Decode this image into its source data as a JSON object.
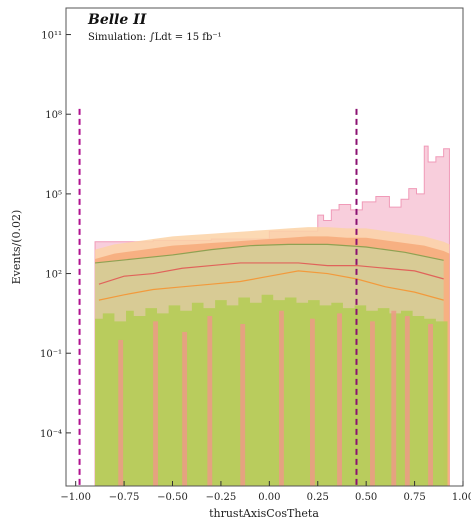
{
  "chart_data": {
    "type": "area",
    "experiment_label": "Belle II",
    "simulation_label": "Simulation: ∫Ldt = 15 fb⁻¹",
    "xlabel": "thrustAxisCosTheta",
    "ylabel": "Events/(0.02)",
    "xlim": [
      -1.05,
      1.0
    ],
    "ylim_log10": [
      -6,
      12
    ],
    "log_y": true,
    "grid": false,
    "x_ticks": [
      {
        "value": -1.0,
        "label": "−1.00"
      },
      {
        "value": -0.75,
        "label": "−0.75"
      },
      {
        "value": -0.5,
        "label": "−0.50"
      },
      {
        "value": -0.25,
        "label": "−0.25"
      },
      {
        "value": 0.0,
        "label": "0.00"
      },
      {
        "value": 0.25,
        "label": "0.25"
      },
      {
        "value": 0.5,
        "label": "0.50"
      },
      {
        "value": 0.75,
        "label": "0.75"
      },
      {
        "value": 1.0,
        "label": "1.00"
      }
    ],
    "y_ticks": [
      {
        "exp": 11,
        "label": "10¹¹"
      },
      {
        "exp": 8,
        "label": "10⁸"
      },
      {
        "exp": 5,
        "label": "10⁵"
      },
      {
        "exp": 2,
        "label": "10²"
      },
      {
        "exp": -1,
        "label": "10⁻¹"
      },
      {
        "exp": -4,
        "label": "10⁻⁴"
      }
    ],
    "cut_lines": [
      {
        "x": -0.98,
        "color": "#b0108f"
      },
      {
        "x": 0.45,
        "color": "#8a1070"
      }
    ],
    "colors": {
      "pink": "#f7c5d6",
      "pink_line": "#f09ab8",
      "orange_light": "#fbd2a6",
      "orange": "#f6a877",
      "olive": "#cfd29a",
      "green": "#b6cc57",
      "salmon": "#ec9a86",
      "red_line": "#e0635a",
      "orange_line": "#f29a3c",
      "olive_line": "#8fa152"
    },
    "series": [
      {
        "style": "pink_top",
        "x_edges": [
          -0.9,
          -0.6,
          -0.3,
          0.0,
          0.25,
          0.28,
          0.32,
          0.36,
          0.42,
          0.48,
          0.55,
          0.62,
          0.68,
          0.72,
          0.76,
          0.8,
          0.82,
          0.86,
          0.9,
          0.93
        ],
        "log10_values": [
          3.2,
          3.25,
          3.3,
          3.6,
          4.2,
          4.0,
          4.4,
          4.6,
          4.4,
          4.7,
          4.9,
          4.5,
          4.8,
          5.2,
          5.0,
          6.8,
          6.2,
          6.4,
          6.7
        ]
      },
      {
        "style": "orange_envelope",
        "x": [
          -0.9,
          -0.8,
          -0.7,
          -0.6,
          -0.5,
          -0.4,
          -0.3,
          -0.2,
          -0.1,
          0.0,
          0.1,
          0.2,
          0.3,
          0.4,
          0.5,
          0.6,
          0.7,
          0.8,
          0.9,
          0.93
        ],
        "log10_values": [
          2.9,
          3.1,
          3.2,
          3.3,
          3.4,
          3.45,
          3.5,
          3.55,
          3.6,
          3.65,
          3.7,
          3.75,
          3.75,
          3.7,
          3.7,
          3.6,
          3.5,
          3.4,
          3.2,
          3.1
        ]
      },
      {
        "style": "olive_band",
        "x": [
          -0.9,
          -0.7,
          -0.5,
          -0.3,
          -0.1,
          0.1,
          0.3,
          0.5,
          0.7,
          0.9
        ],
        "log10_values": [
          2.4,
          2.55,
          2.7,
          2.9,
          3.05,
          3.1,
          3.1,
          3.0,
          2.8,
          2.5
        ]
      },
      {
        "style": "red_line",
        "x": [
          -0.88,
          -0.75,
          -0.6,
          -0.45,
          -0.3,
          -0.15,
          0.0,
          0.15,
          0.3,
          0.45,
          0.6,
          0.75,
          0.9
        ],
        "log10_values": [
          1.6,
          1.9,
          2.0,
          2.2,
          2.3,
          2.4,
          2.4,
          2.4,
          2.3,
          2.3,
          2.2,
          2.1,
          1.8
        ]
      },
      {
        "style": "orange_line",
        "x": [
          -0.88,
          -0.75,
          -0.6,
          -0.45,
          -0.3,
          -0.15,
          0.0,
          0.15,
          0.3,
          0.45,
          0.6,
          0.75,
          0.9
        ],
        "log10_values": [
          1.0,
          1.2,
          1.4,
          1.5,
          1.6,
          1.7,
          1.9,
          2.1,
          2.0,
          1.8,
          1.5,
          1.3,
          1.0
        ]
      },
      {
        "style": "green_bars",
        "floor_log10": -6,
        "x_edges": [
          -0.9,
          -0.86,
          -0.8,
          -0.74,
          -0.7,
          -0.64,
          -0.58,
          -0.52,
          -0.46,
          -0.4,
          -0.34,
          -0.28,
          -0.22,
          -0.16,
          -0.1,
          -0.04,
          0.02,
          0.08,
          0.14,
          0.2,
          0.26,
          0.32,
          0.38,
          0.44,
          0.5,
          0.56,
          0.62,
          0.68,
          0.74,
          0.8,
          0.86,
          0.92
        ],
        "log10_values": [
          0.3,
          0.5,
          0.2,
          0.6,
          0.4,
          0.7,
          0.5,
          0.8,
          0.6,
          0.9,
          0.7,
          1.0,
          0.8,
          1.1,
          0.9,
          1.2,
          1.0,
          1.1,
          0.9,
          1.0,
          0.8,
          0.9,
          0.7,
          0.8,
          0.6,
          0.7,
          0.5,
          0.6,
          0.4,
          0.3,
          0.2
        ]
      },
      {
        "style": "salmon_stripes",
        "floor_log10": -6,
        "x": [
          -0.78,
          -0.6,
          -0.45,
          -0.32,
          -0.15,
          0.05,
          0.21,
          0.35,
          0.52,
          0.63,
          0.7,
          0.82
        ],
        "width": 0.025,
        "log10_values": [
          -0.5,
          0.2,
          -0.2,
          0.4,
          0.1,
          0.6,
          0.3,
          0.5,
          0.2,
          0.6,
          0.4,
          0.1
        ]
      }
    ]
  }
}
